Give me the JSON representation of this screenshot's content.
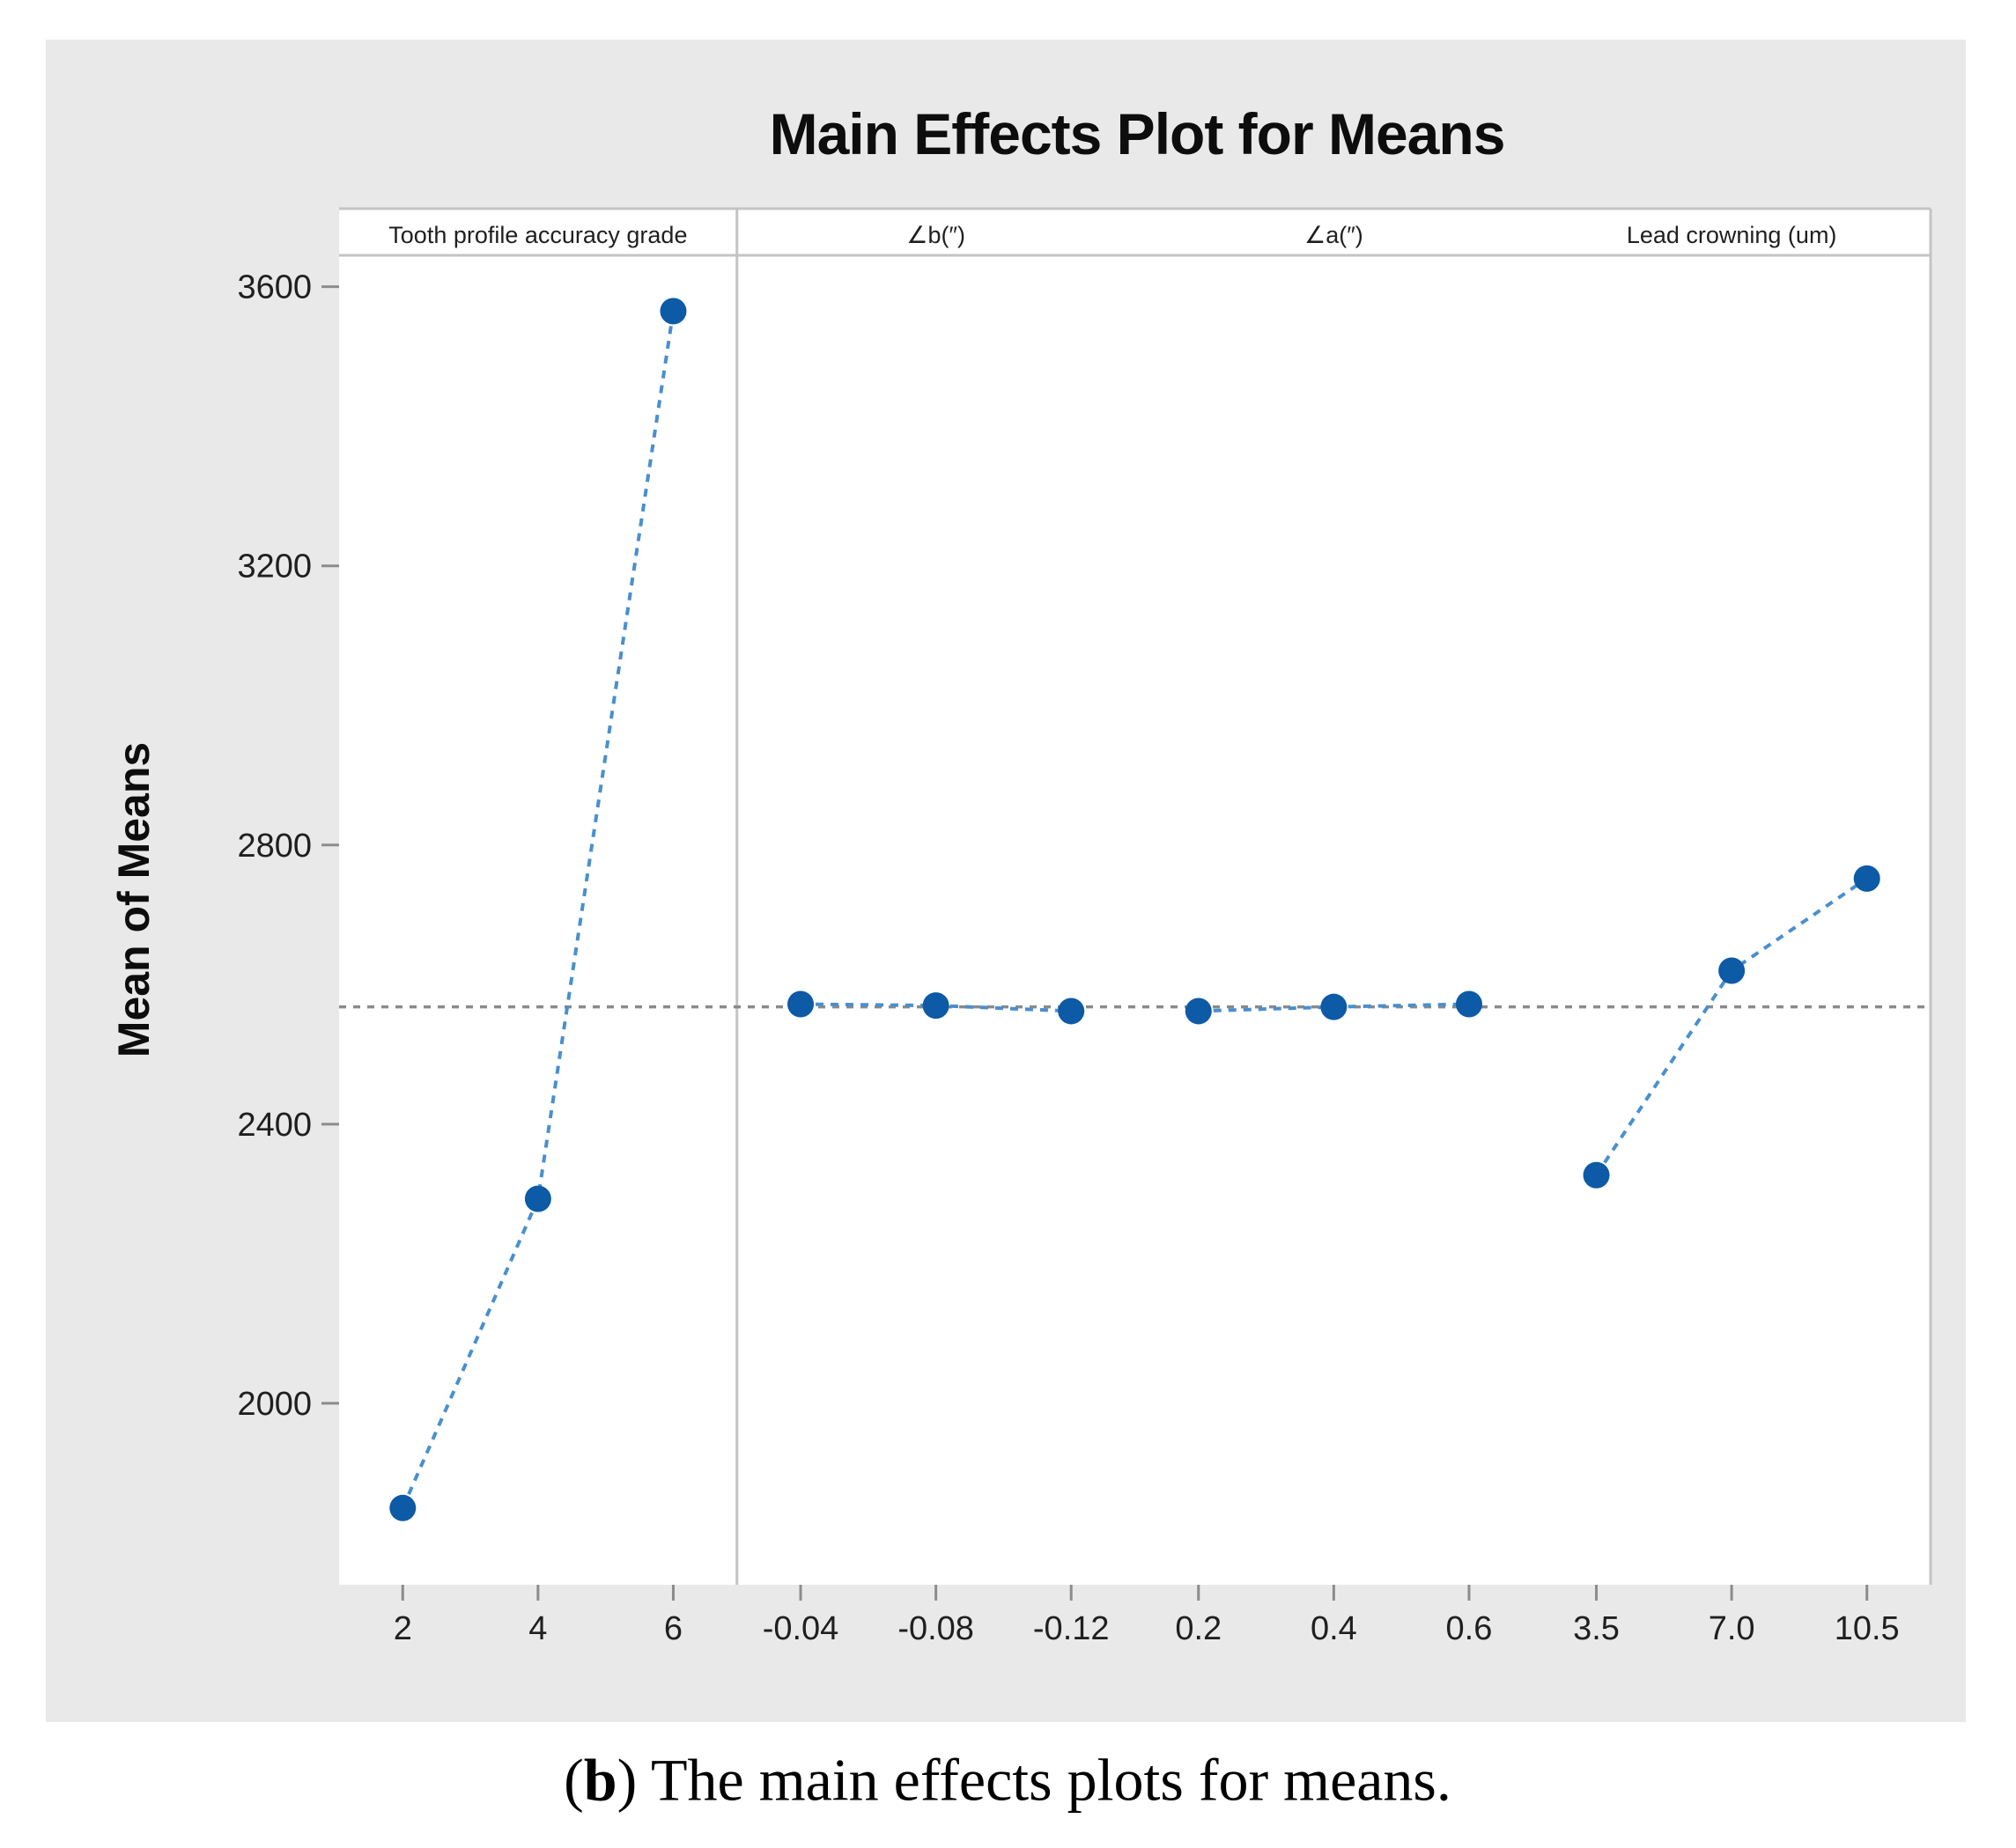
{
  "figure": {
    "title": "Main Effects Plot for Means",
    "y_axis_label": "Mean of Means",
    "caption": {
      "open_paren": "(",
      "bold_letter": "b",
      "rest": ") The main effects plots for means."
    }
  },
  "chart_data": {
    "type": "line",
    "title": "Main Effects Plot for Means",
    "ylabel": "Mean of Means",
    "xlabel": "",
    "yticks": [
      2000,
      2400,
      2800,
      3200,
      3600
    ],
    "ylim": [
      1740,
      3645
    ],
    "grid": false,
    "legend": "none",
    "grand_mean": 2568,
    "line_style": "dashed",
    "marker": "circle",
    "colors": {
      "marker": "#0d5aa6",
      "connector_line": "#4a8fcd",
      "grand_mean_line": "#8a8a8a",
      "figure_background": "#e9e9e9",
      "plot_background": "#ffffff",
      "panel_border": "#c4c4c4",
      "tick": "#8c8c8c",
      "text": "#1f1f1f"
    },
    "panels": [
      {
        "label": "Tooth profile accuracy grade",
        "x_tick_labels": [
          "2",
          "4",
          "6"
        ],
        "x": [
          2,
          4,
          6
        ],
        "values": [
          1850,
          2293,
          3565
        ]
      },
      {
        "label": "∠b(″)",
        "x_tick_labels": [
          "-0.04",
          "-0.08",
          "-0.12"
        ],
        "x": [
          -0.04,
          -0.08,
          -0.12
        ],
        "values": [
          2572,
          2570,
          2562
        ]
      },
      {
        "label": "∠a(″)",
        "x_tick_labels": [
          "0.2",
          "0.4",
          "0.6"
        ],
        "x": [
          0.2,
          0.4,
          0.6
        ],
        "values": [
          2562,
          2568,
          2572
        ]
      },
      {
        "label": "Lead crowning (um)",
        "x_tick_labels": [
          "3.5",
          "7.0",
          "10.5"
        ],
        "x": [
          3.5,
          7.0,
          10.5
        ],
        "values": [
          2327,
          2620,
          2752
        ]
      }
    ]
  }
}
